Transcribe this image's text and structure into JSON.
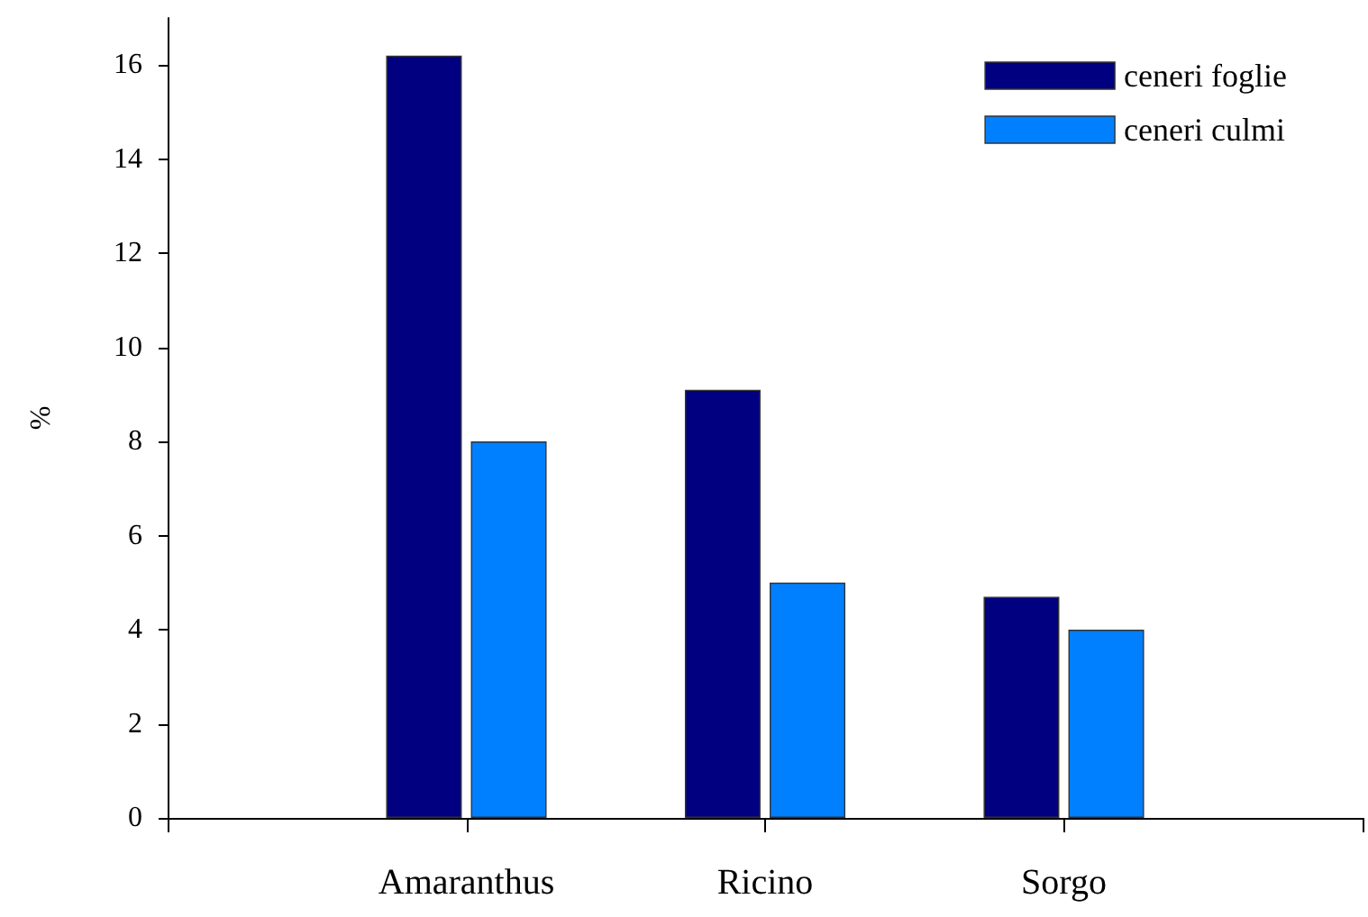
{
  "chart_data": {
    "type": "bar",
    "ylabel": "%",
    "categories": [
      null,
      "Amaranthus",
      "Ricino",
      "Sorgo",
      null
    ],
    "series": [
      {
        "name": "ceneri foglie",
        "color": "#000080",
        "values": [
          null,
          16.2,
          9.1,
          4.7,
          null
        ]
      },
      {
        "name": "ceneri culmi",
        "color": "#0080ff",
        "values": [
          null,
          8.0,
          5.0,
          4.0,
          null
        ]
      }
    ],
    "ylim": [
      0,
      17
    ],
    "yticks": [
      0,
      2,
      4,
      6,
      8,
      10,
      12,
      14,
      16
    ],
    "grid": false,
    "legend": "top right"
  }
}
